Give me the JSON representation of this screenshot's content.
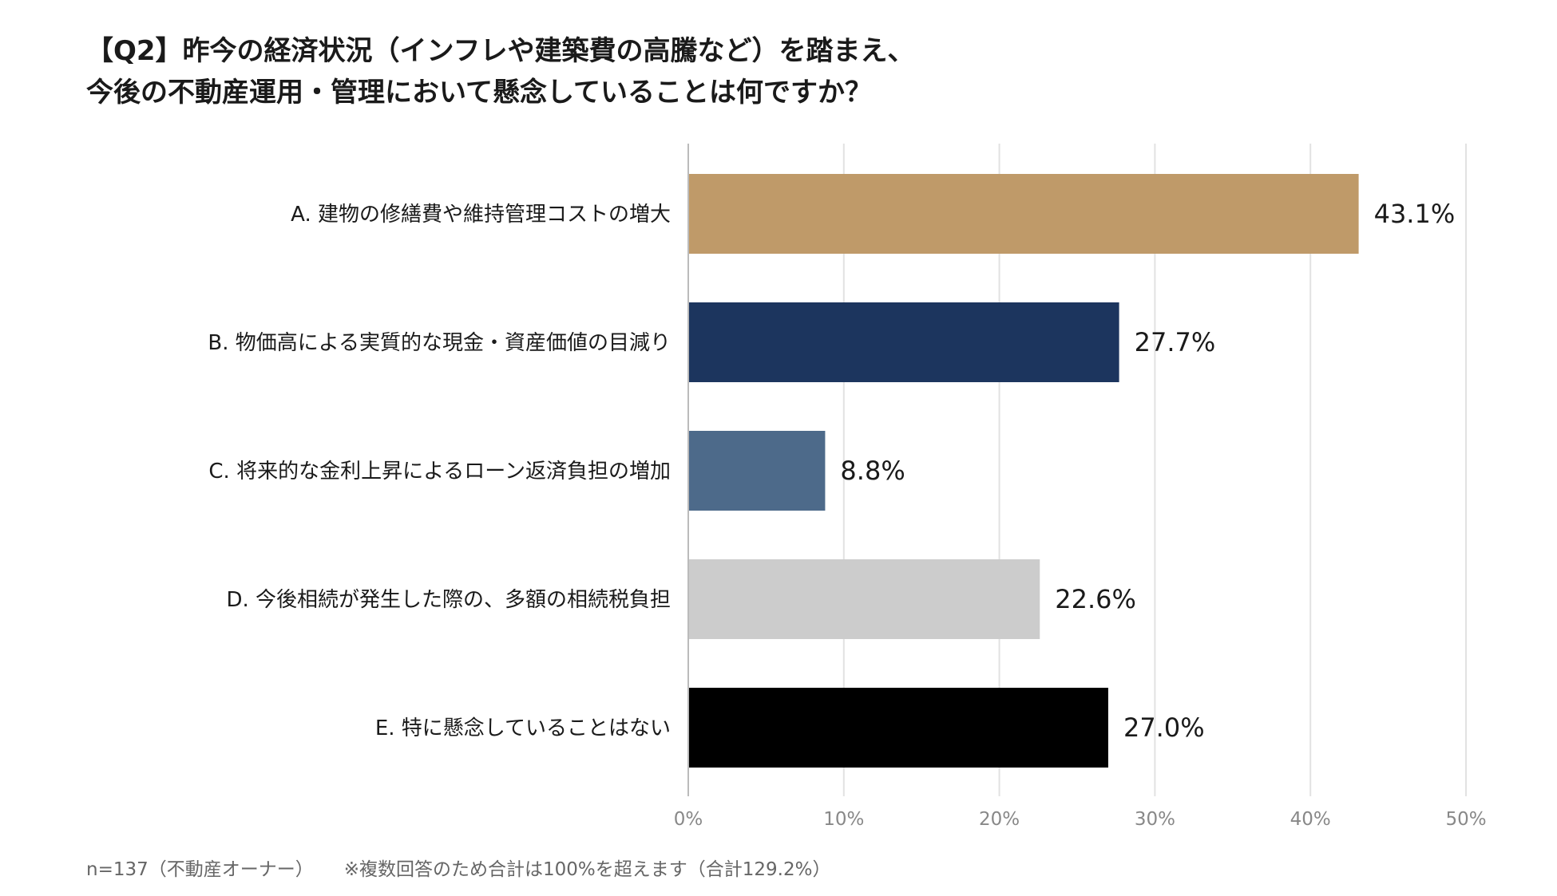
{
  "title": {
    "line1": "【Q2】昨今の経済状況（インフレや建築費の高騰など）を踏まえ、",
    "line2": "今後の不動産運用・管理において懸念していることは何ですか？"
  },
  "footnote": {
    "sample": "n=137（不動産オーナー）",
    "note": "※複数回答のため合計は100%を超えます（合計129.2%）"
  },
  "chart_data": {
    "type": "bar",
    "orientation": "horizontal",
    "categories": [
      "A. 建物の修繕費や維持管理コストの増大",
      "B. 物価高による実質的な現金・資産価値の目減り",
      "C. 将来的な金利上昇によるローン返済負担の増加",
      "D. 今後相続が発生した際の、多額の相続税負担",
      "E. 特に懸念していることはない"
    ],
    "values": [
      43.1,
      27.7,
      8.8,
      22.6,
      27.0
    ],
    "value_labels": [
      "43.1%",
      "27.7%",
      "8.8%",
      "22.6%",
      "27.0%"
    ],
    "colors": [
      "#bf9a69",
      "#1c355e",
      "#4d6a8a",
      "#cccccc",
      "#000000"
    ],
    "xlim": [
      0,
      50
    ],
    "xticks": [
      0,
      10,
      20,
      30,
      40,
      50
    ],
    "xtick_labels": [
      "0%",
      "10%",
      "20%",
      "30%",
      "40%",
      "50%"
    ],
    "grid": true,
    "legend": false
  }
}
